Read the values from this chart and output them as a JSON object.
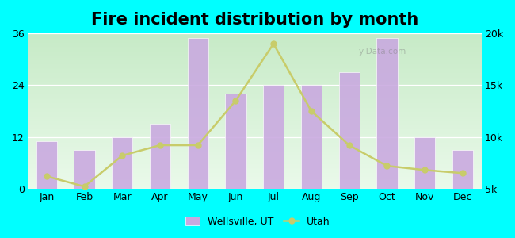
{
  "title": "Fire incident distribution by month",
  "months": [
    "Jan",
    "Feb",
    "Mar",
    "Apr",
    "May",
    "Jun",
    "Jul",
    "Aug",
    "Sep",
    "Oct",
    "Nov",
    "Dec"
  ],
  "wellsville_values": [
    11,
    9,
    12,
    15,
    35,
    22,
    24,
    24,
    27,
    35,
    12,
    9
  ],
  "utah_values": [
    6200,
    5200,
    8200,
    9200,
    9200,
    13500,
    19000,
    12500,
    9200,
    7200,
    6800,
    6500
  ],
  "bar_color": "#C9A8E0",
  "line_color": "#C8CC6A",
  "outer_bg": "#00FFFF",
  "left_ylim": [
    0,
    36
  ],
  "left_yticks": [
    0,
    12,
    24,
    36
  ],
  "right_ylim": [
    5000,
    20000
  ],
  "right_yticks": [
    5000,
    10000,
    15000,
    20000
  ],
  "right_yticklabels": [
    "5k",
    "10k",
    "15k",
    "20k"
  ],
  "title_fontsize": 15,
  "tick_fontsize": 9,
  "legend_fontsize": 9,
  "watermark_text": "y-Data.com"
}
